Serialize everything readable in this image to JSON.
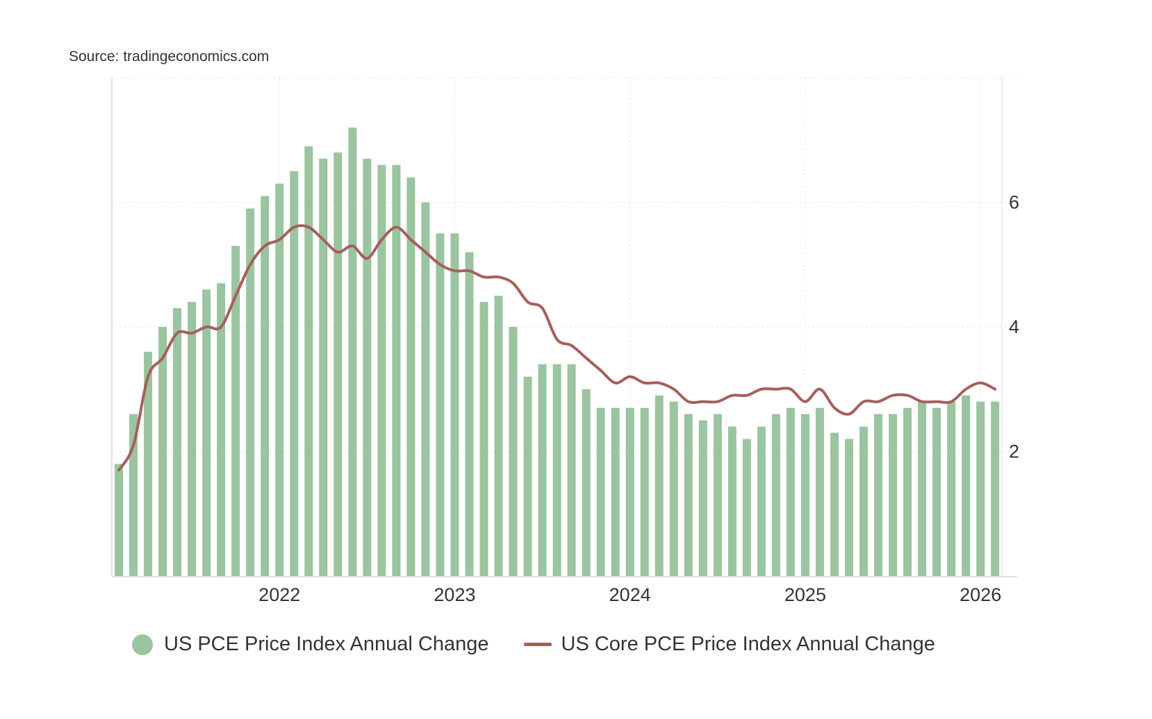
{
  "source": "Source: tradingeconomics.com",
  "chart_data": {
    "type": "bar",
    "title": "",
    "xlabel": "",
    "ylabel": "",
    "ylim": [
      0,
      8
    ],
    "y_ticks": [
      "2",
      "4",
      "6"
    ],
    "y_axis_side": "right",
    "x_ticks": [
      {
        "label": "2022",
        "index": 11
      },
      {
        "label": "2023",
        "index": 23
      },
      {
        "label": "2024",
        "index": 35
      },
      {
        "label": "2025",
        "index": 47
      },
      {
        "label": "2026",
        "index": 59
      }
    ],
    "grid": true,
    "legend_placement": "bottom",
    "series": [
      {
        "name": "US PCE Price Index Annual Change",
        "type": "bar",
        "color": "#9bc4a0",
        "values": [
          1.8,
          2.6,
          3.6,
          4.0,
          4.3,
          4.4,
          4.6,
          4.7,
          5.3,
          5.9,
          6.1,
          6.3,
          6.5,
          6.9,
          6.7,
          6.8,
          7.2,
          6.7,
          6.6,
          6.6,
          6.4,
          6.0,
          5.5,
          5.5,
          5.2,
          4.4,
          4.5,
          4.0,
          3.2,
          3.4,
          3.4,
          3.4,
          3.0,
          2.7,
          2.7,
          2.7,
          2.7,
          2.9,
          2.8,
          2.6,
          2.5,
          2.6,
          2.4,
          2.2,
          2.4,
          2.6,
          2.7,
          2.6,
          2.7,
          2.3,
          2.2,
          2.4,
          2.6,
          2.6,
          2.7,
          2.8,
          2.7,
          2.8,
          2.9,
          2.8,
          2.8
        ]
      },
      {
        "name": "US Core PCE Price Index Annual Change",
        "type": "line",
        "color": "#a65f5a",
        "values": [
          1.7,
          2.1,
          3.2,
          3.5,
          3.9,
          3.9,
          4.0,
          4.0,
          4.5,
          5.0,
          5.3,
          5.4,
          5.6,
          5.6,
          5.4,
          5.2,
          5.3,
          5.1,
          5.4,
          5.6,
          5.4,
          5.2,
          5.0,
          4.9,
          4.9,
          4.8,
          4.8,
          4.7,
          4.4,
          4.3,
          3.8,
          3.7,
          3.5,
          3.3,
          3.1,
          3.2,
          3.1,
          3.1,
          3.0,
          2.8,
          2.8,
          2.8,
          2.9,
          2.9,
          3.0,
          3.0,
          3.0,
          2.8,
          3.0,
          2.7,
          2.6,
          2.8,
          2.8,
          2.9,
          2.9,
          2.8,
          2.8,
          2.8,
          3.0,
          3.1,
          3.0
        ]
      }
    ]
  }
}
